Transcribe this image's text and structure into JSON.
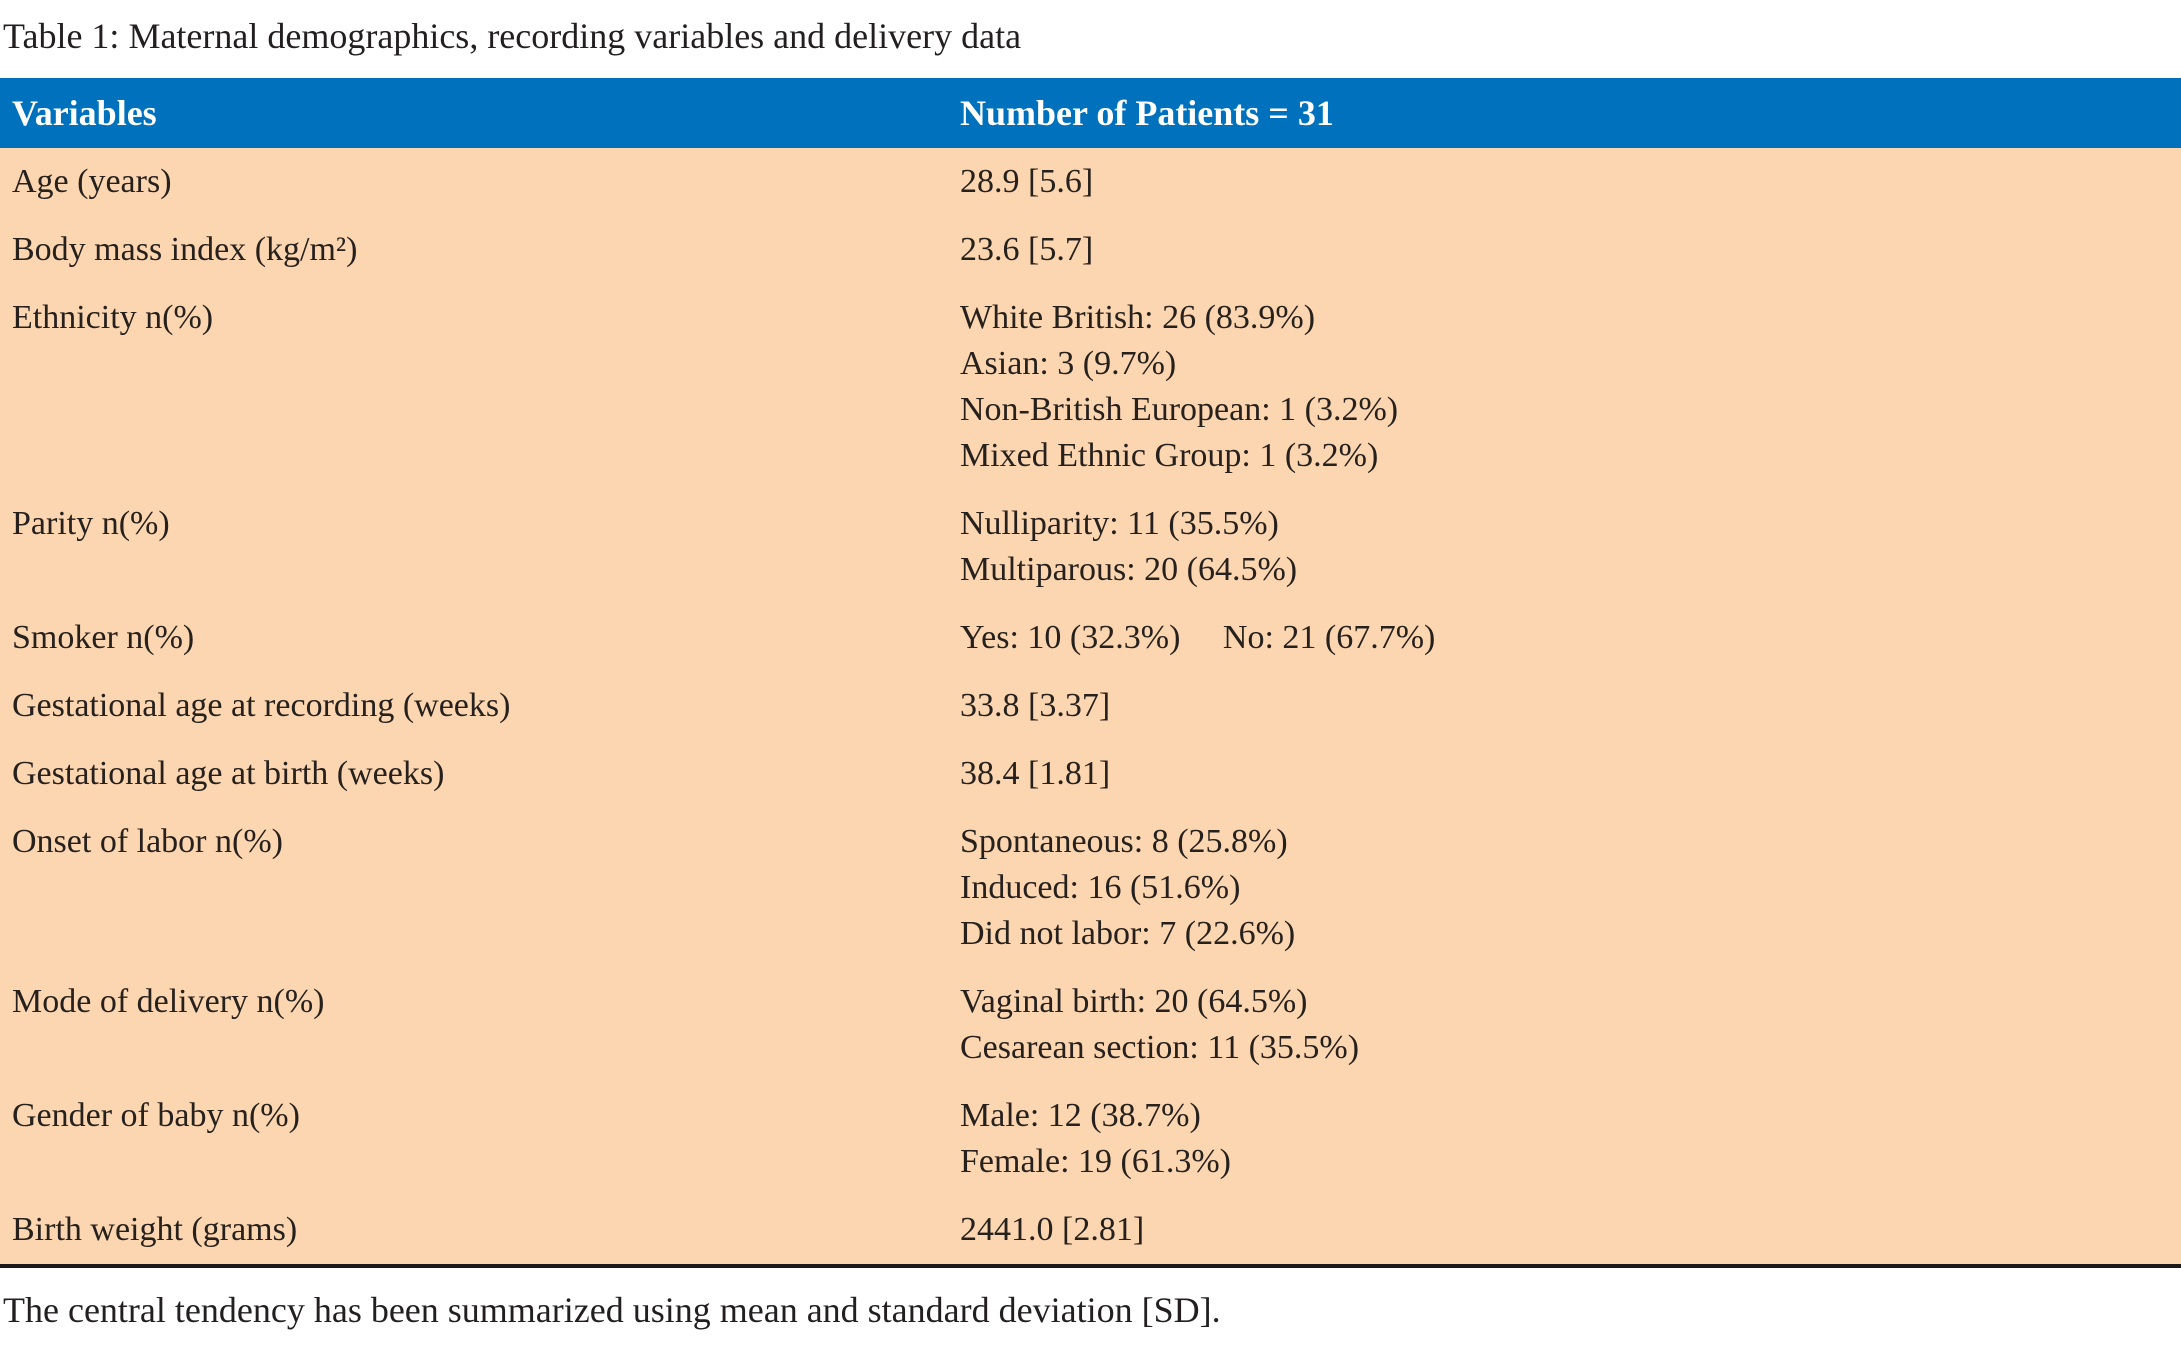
{
  "page": {
    "title": "Table 1: Maternal demographics, recording variables and delivery data",
    "footnote": "The central tendency has been summarized using mean and standard deviation [SD]."
  },
  "table": {
    "columns": [
      "Variables",
      "Number of Patients = 31"
    ],
    "rows": [
      {
        "label": "Age (years)",
        "value": "28.9 [5.6]"
      },
      {
        "label": "Body mass index (kg/m²)",
        "value": "23.6 [5.7]"
      },
      {
        "label": "Ethnicity n(%)",
        "value": "White British: 26 (83.9%)\nAsian: 3 (9.7%)\nNon-British European: 1 (3.2%)\nMixed Ethnic Group: 1 (3.2%)"
      },
      {
        "label": "Parity n(%)",
        "value": "Nulliparity: 11 (35.5%)\nMultiparous: 20 (64.5%)"
      },
      {
        "label": "Smoker n(%)",
        "value": "Yes: 10 (32.3%)     No: 21 (67.7%)"
      },
      {
        "label": "Gestational age at recording (weeks)",
        "value": "33.8 [3.37]"
      },
      {
        "label": "Gestational age at birth (weeks)",
        "value": "38.4 [1.81]"
      },
      {
        "label": "Onset of labor n(%)",
        "value": "Spontaneous: 8 (25.8%)\nInduced: 16 (51.6%)\nDid not labor: 7 (22.6%)"
      },
      {
        "label": "Mode of delivery n(%)",
        "value": "Vaginal birth: 20 (64.5%)\nCesarean section: 11 (35.5%)"
      },
      {
        "label": "Gender of baby n(%)",
        "value": "Male: 12 (38.7%)\nFemale: 19 (61.3%)"
      },
      {
        "label": "Birth weight (grams)",
        "value": "2441.0 [2.81]"
      }
    ]
  },
  "colors": {
    "header_bg": "#0071BC",
    "header_text": "#FFFFFF",
    "body_bg": "#FCD6B1",
    "body_text": "#27211E",
    "title_text": "#231F20",
    "rule": "#1A1A1A"
  }
}
